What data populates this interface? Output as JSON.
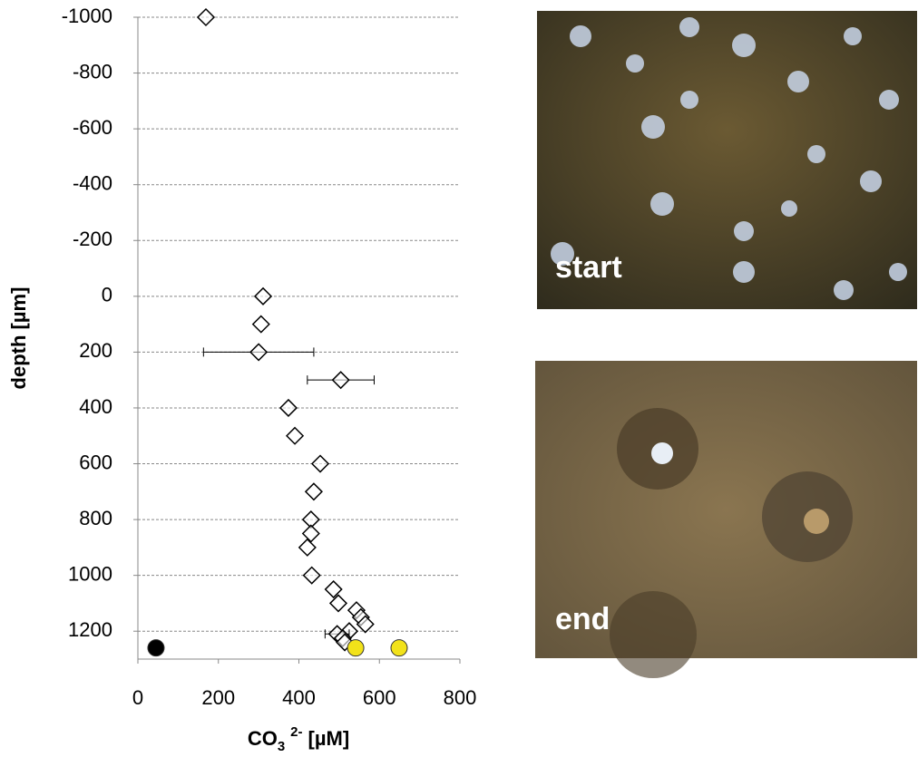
{
  "chart_data": {
    "type": "scatter",
    "y_label": "depth [µm]",
    "x_label": {
      "base": "CO",
      "sub": "3",
      "sup": "2-",
      "unit": "[µM]"
    },
    "xlim": [
      0,
      800
    ],
    "xticks": [
      0,
      200,
      400,
      600,
      800
    ],
    "ylim": [
      -1000,
      1300
    ],
    "y_inverted": true,
    "yticks": [
      -1000,
      -800,
      -600,
      -400,
      -200,
      0,
      200,
      400,
      600,
      800,
      1000,
      1200
    ],
    "grid": true,
    "series": [
      {
        "marker": "diamond",
        "color": "#ffffff",
        "x": [
          169,
          311,
          306,
          300,
          504,
          374,
          390,
          453,
          437,
          430,
          430,
          421,
          432,
          486,
          498,
          543,
          554,
          565,
          525,
          495,
          509,
          514
        ],
        "values": [
          -1000,
          0,
          100,
          200,
          300,
          400,
          500,
          600,
          700,
          800,
          850,
          900,
          1000,
          1050,
          1100,
          1125,
          1150,
          1175,
          1200,
          1210,
          1225,
          1240
        ],
        "errors": [
          null,
          null,
          null,
          137,
          83,
          null,
          null,
          null,
          null,
          null,
          null,
          null,
          null,
          null,
          null,
          null,
          null,
          null,
          null,
          30,
          null,
          null
        ]
      },
      {
        "marker": "circle",
        "color": "#000000",
        "x": [
          45
        ],
        "values": [
          1260
        ]
      },
      {
        "marker": "circle",
        "color": "#f2e21a",
        "x": [
          541,
          649
        ],
        "values": [
          1260,
          1260
        ]
      }
    ]
  },
  "photos": [
    {
      "label": "start"
    },
    {
      "label": "end"
    }
  ]
}
